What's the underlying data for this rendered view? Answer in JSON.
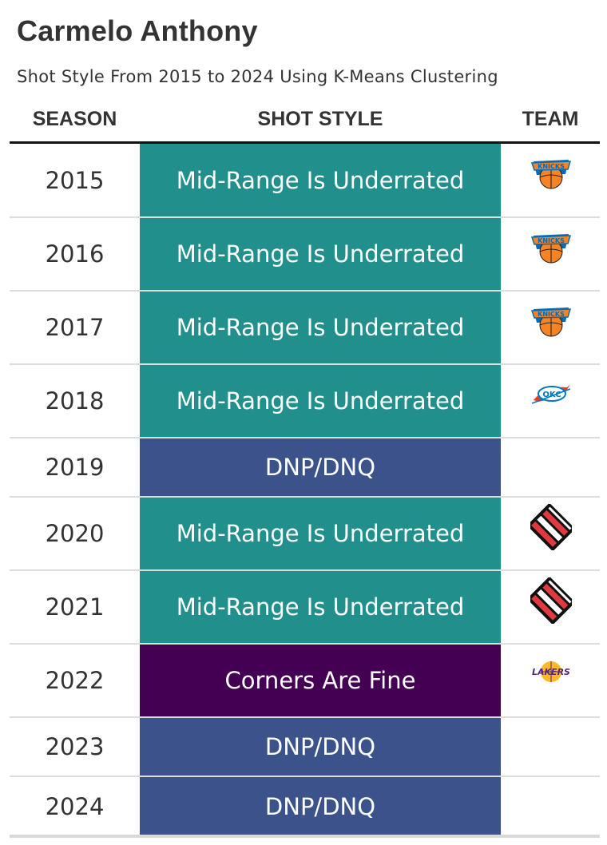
{
  "header": {
    "title": "Carmelo Anthony",
    "subtitle": "Shot Style From 2015 to 2024 Using K-Means Clustering"
  },
  "columns": {
    "season": "SEASON",
    "shot_style": "SHOT STYLE",
    "team": "TEAM"
  },
  "colors": {
    "Mid-Range Is Underrated": "#21908c",
    "DNP/DNQ": "#3b528b",
    "Corners Are Fine": "#440154",
    "knicks_orange": "#f58426",
    "knicks_blue": "#006bb6",
    "thunder_blue": "#007ac1",
    "thunder_orange": "#ef3b24",
    "blazers_red": "#e03a3e",
    "blazers_black": "#111111",
    "lakers_purple": "#552583",
    "lakers_gold": "#fdb927"
  },
  "chart_data": {
    "type": "table",
    "title": "Carmelo Anthony",
    "subtitle": "Shot Style From 2015 to 2024 Using K-Means Clustering",
    "columns": [
      "SEASON",
      "SHOT STYLE",
      "TEAM"
    ],
    "rows": [
      {
        "season": "2015",
        "shot_style": "Mid-Range Is Underrated",
        "team_icon": "knicks-logo-icon"
      },
      {
        "season": "2016",
        "shot_style": "Mid-Range Is Underrated",
        "team_icon": "knicks-logo-icon"
      },
      {
        "season": "2017",
        "shot_style": "Mid-Range Is Underrated",
        "team_icon": "knicks-logo-icon"
      },
      {
        "season": "2018",
        "shot_style": "Mid-Range Is Underrated",
        "team_icon": "thunder-logo-icon"
      },
      {
        "season": "2019",
        "shot_style": "DNP/DNQ",
        "team_icon": ""
      },
      {
        "season": "2020",
        "shot_style": "Mid-Range Is Underrated",
        "team_icon": "trail-blazers-logo-icon"
      },
      {
        "season": "2021",
        "shot_style": "Mid-Range Is Underrated",
        "team_icon": "trail-blazers-logo-icon"
      },
      {
        "season": "2022",
        "shot_style": "Corners Are Fine",
        "team_icon": "lakers-logo-icon"
      },
      {
        "season": "2023",
        "shot_style": "DNP/DNQ",
        "team_icon": ""
      },
      {
        "season": "2024",
        "shot_style": "DNP/DNQ",
        "team_icon": ""
      }
    ]
  }
}
